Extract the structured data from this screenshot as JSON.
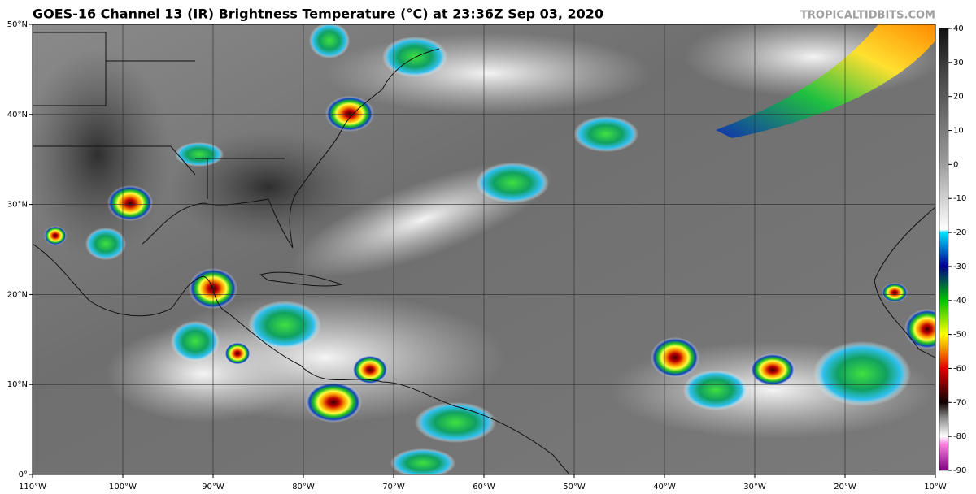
{
  "header": {
    "title": "GOES-16 Channel 13 (IR) Brightness Temperature (°C) at 23:36Z Sep 03, 2020",
    "source": "TROPICALTIDBITS.COM"
  },
  "map": {
    "lat_labels": [
      "50°N",
      "40°N",
      "30°N",
      "20°N",
      "10°N",
      "0°"
    ],
    "lon_labels": [
      "110°W",
      "100°W",
      "90°W",
      "80°W",
      "70°W",
      "60°W",
      "50°W",
      "40°W",
      "30°W",
      "20°W",
      "10°W"
    ]
  },
  "colorbar": {
    "ticks": [
      40,
      30,
      20,
      10,
      0,
      -10,
      -20,
      -30,
      -40,
      -50,
      -60,
      -70,
      -80,
      -90
    ]
  }
}
